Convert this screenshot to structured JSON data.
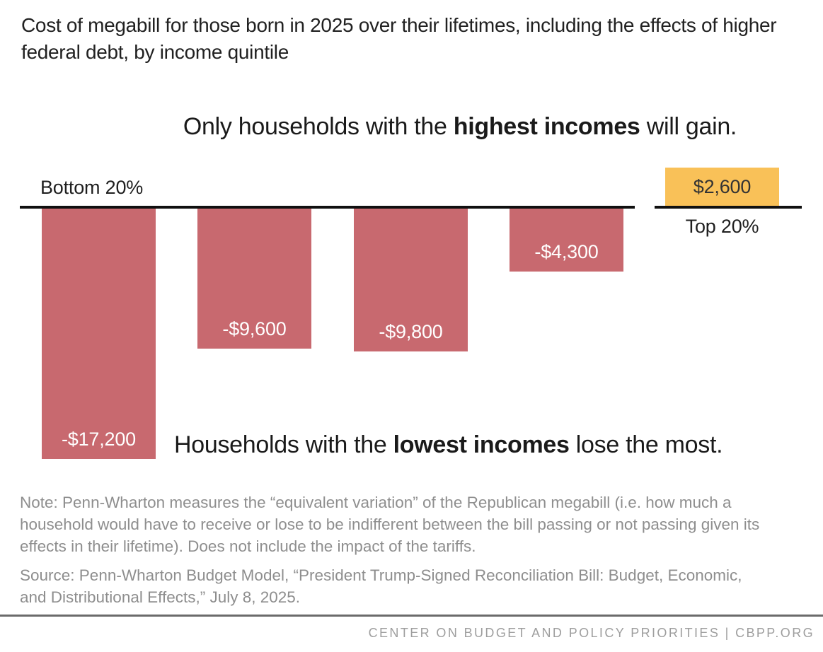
{
  "header": {
    "title": "Cost of megabill for those born in 2025 over their lifetimes, including the effects of higher federal debt, by income quintile"
  },
  "chart_data": {
    "type": "bar",
    "categories": [
      "Bottom 20%",
      "",
      "",
      "",
      "Top 20%"
    ],
    "values": [
      -17200,
      -9600,
      -9800,
      -4300,
      2600
    ],
    "value_labels": [
      "-$17,200",
      "-$9,600",
      "-$9,800",
      "-$4,300",
      "$2,600"
    ],
    "first_category_label": "Bottom 20%",
    "last_category_label": "Top 20%",
    "baseline_value": 0,
    "grid": "off",
    "legend": "none",
    "annotation_top": {
      "prefix": "Only households with the ",
      "bold": "highest incomes",
      "suffix": " will gain."
    },
    "annotation_bottom": {
      "prefix": "Households with the ",
      "bold": "lowest incomes",
      "suffix": " lose the most."
    },
    "colors": {
      "negative_bar": "#c8696f",
      "positive_bar": "#f9c158",
      "axis_line": "#101010"
    }
  },
  "notes": {
    "note": "Note: Penn-Wharton measures the “equivalent variation” of the Republican megabill (i.e. how much a household would have to receive or lose to be indifferent between the bill passing or not passing given its effects in their lifetime). Does not include the impact of the tariffs.",
    "source": "Source: Penn-Wharton Budget Model, “President Trump-Signed Reconciliation Bill: Budget, Economic, and Distributional Effects,” July 8, 2025."
  },
  "footer": {
    "text": "CENTER ON BUDGET AND POLICY PRIORITIES | CBPP.ORG"
  }
}
